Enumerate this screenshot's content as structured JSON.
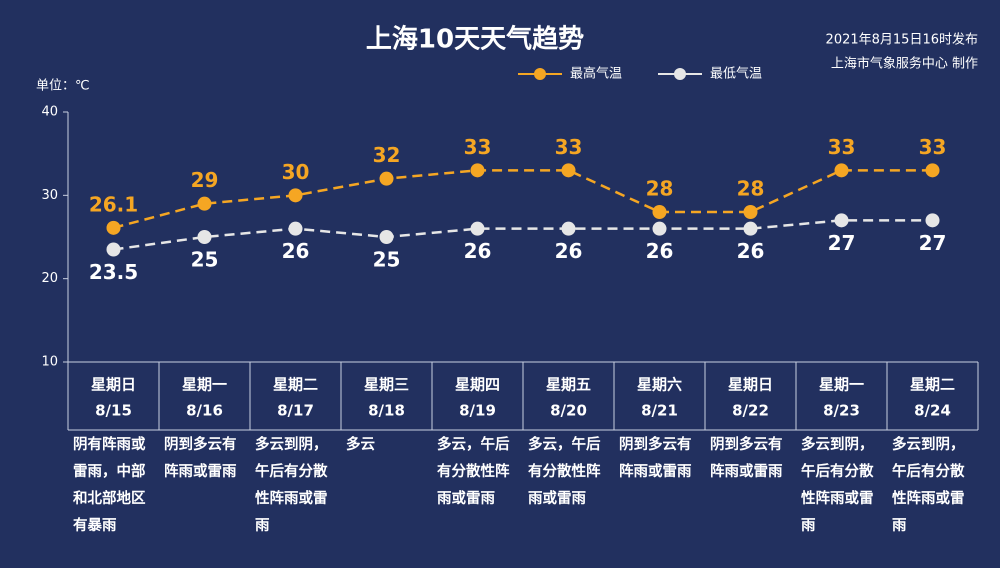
{
  "chart_data": {
    "type": "line",
    "title": "上海10天天气趋势",
    "subtitle": [
      "2021年8月15日16时发布",
      "上海市气象服务中心 制作"
    ],
    "y_label": "单位：℃",
    "weekdays": [
      "星期日",
      "星期一",
      "星期二",
      "星期三",
      "星期四",
      "星期五",
      "星期六",
      "星期日",
      "星期一",
      "星期二"
    ],
    "categories": [
      "8/15",
      "8/16",
      "8/17",
      "8/18",
      "8/19",
      "8/20",
      "8/21",
      "8/22",
      "8/23",
      "8/24"
    ],
    "descriptions": [
      "阴有阵雨或雷雨，中部和北部地区有暴雨",
      "阴到多云有阵雨或雷雨",
      "多云到阴，午后有分散性阵雨或雷雨",
      "多云",
      "多云，午后有分散性阵雨或雷雨",
      "多云，午后有分散性阵雨或雷雨",
      "阴到多云有阵雨或雷雨",
      "阴到多云有阵雨或雷雨",
      "多云到阴，午后有分散性阵雨或雷雨",
      "多云到阴，午后有分散性阵雨或雷雨"
    ],
    "series": [
      {
        "name": "最高气温",
        "color": "#f5a623",
        "values": [
          26.1,
          29,
          30,
          32,
          33,
          33,
          28,
          28,
          33,
          33
        ]
      },
      {
        "name": "最低气温",
        "color": "#e6e6e6",
        "values": [
          23.5,
          25,
          26,
          25,
          26,
          26,
          26,
          26,
          27,
          27
        ]
      }
    ],
    "ylim": [
      10,
      40
    ],
    "yticks": [
      10,
      20,
      30,
      40
    ],
    "grid": false
  }
}
